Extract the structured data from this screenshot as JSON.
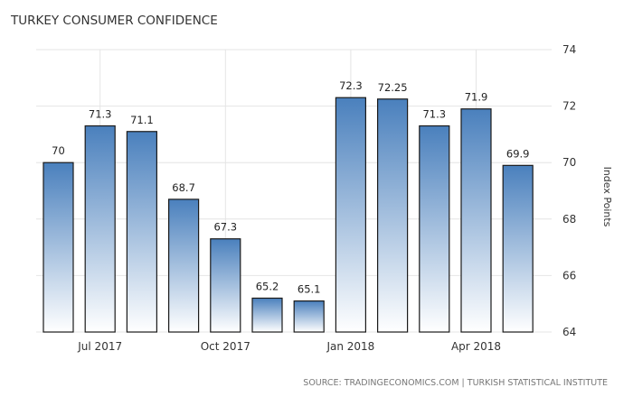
{
  "chart_data": {
    "type": "bar",
    "title": "TURKEY CONSUMER CONFIDENCE",
    "ylabel": "Index Points",
    "xlabel": "",
    "source": "SOURCE: TRADINGECONOMICS.COM | TURKISH STATISTICAL INSTITUTE",
    "ylim": [
      64,
      74
    ],
    "yticks": [
      64,
      66,
      68,
      70,
      72,
      74
    ],
    "y_axis_side": "right",
    "grid": true,
    "legend": "none",
    "values": [
      70,
      71.3,
      71.1,
      68.7,
      67.3,
      65.2,
      65.1,
      72.3,
      72.25,
      71.3,
      71.9,
      69.9
    ],
    "data_labels": [
      "70",
      "71.3",
      "71.1",
      "68.7",
      "67.3",
      "65.2",
      "65.1",
      "72.3",
      "72.25",
      "71.3",
      "71.9",
      "69.9"
    ],
    "x_tick_labels": [
      {
        "bar_index": 1,
        "label": "Jul 2017"
      },
      {
        "bar_index": 4,
        "label": "Oct 2017"
      },
      {
        "bar_index": 7,
        "label": "Jan 2018"
      },
      {
        "bar_index": 10,
        "label": "Apr 2018"
      }
    ],
    "colors": {
      "bar_top": "#4a80bd",
      "bar_bottom": "#ffffff",
      "bar_border": "#1a1a1a",
      "grid": "#e4e4e4"
    }
  }
}
